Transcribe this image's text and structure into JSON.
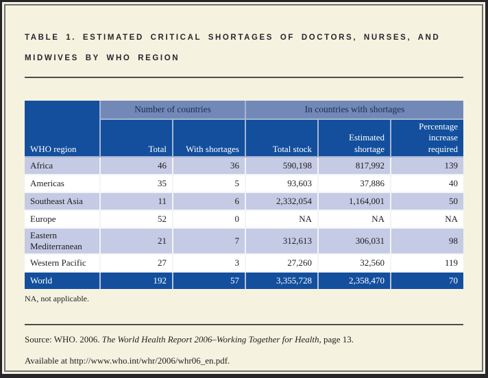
{
  "title": {
    "line1": "TABLE 1. ESTIMATED CRITICAL SHORTAGES OF DOCTORS, NURSES, AND",
    "line2": "MIDWIVES BY WHO REGION"
  },
  "table": {
    "group_headers": {
      "number_of_countries": "Number of countries",
      "in_countries_with_shortages": "In countries with shortages"
    },
    "column_headers": [
      "WHO region",
      "Total",
      "With shortages",
      "Total stock",
      "Estimated shortage",
      "Percentage increase required"
    ],
    "rows": [
      {
        "region": "Africa",
        "values": [
          "46",
          "36",
          "590,198",
          "817,992",
          "139"
        ]
      },
      {
        "region": "Americas",
        "values": [
          "35",
          "5",
          "93,603",
          "37,886",
          "40"
        ]
      },
      {
        "region": "Southeast Asia",
        "values": [
          "11",
          "6",
          "2,332,054",
          "1,164,001",
          "50"
        ]
      },
      {
        "region": "Europe",
        "values": [
          "52",
          "0",
          "NA",
          "NA",
          "NA"
        ]
      },
      {
        "region": "Eastern Mediterranean",
        "values": [
          "21",
          "7",
          "312,613",
          "306,031",
          "98"
        ]
      },
      {
        "region": "Western Pacific",
        "values": [
          "27",
          "3",
          "27,260",
          "32,560",
          "119"
        ]
      },
      {
        "region": "World",
        "values": [
          "192",
          "57",
          "3,355,728",
          "2,358,470",
          "70"
        ]
      }
    ]
  },
  "note": "NA, not applicable.",
  "source": {
    "prefix": "Source: WHO. 2006. ",
    "book_title": "The World Health Report 2006–Working Together for Health",
    "suffix": ", page 13."
  },
  "available": "Available at http://www.who.int/whr/2006/whr06_en.pdf.",
  "colors": {
    "page_background": "#f5f2e0",
    "dark_blue": "#134f9d",
    "medium_blue": "#7289b8",
    "light_row": "#c5cbe4",
    "frame_border": "#26262a"
  }
}
